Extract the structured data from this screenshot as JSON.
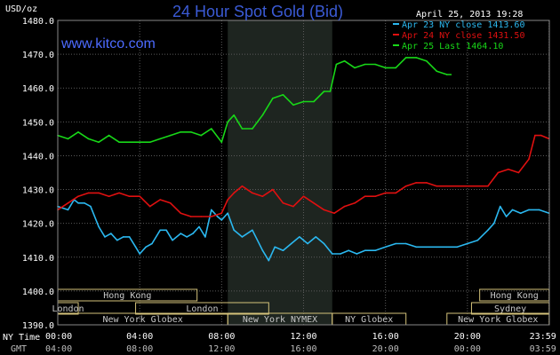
{
  "chart_data": {
    "type": "line",
    "title": "24 Hour Spot Gold (Bid)",
    "site": "www.kitco.com",
    "date_label": "April 25, 2013 19:28",
    "yunit": "USD/oz",
    "ylim": [
      1390,
      1480
    ],
    "yticks": [
      "1390.0",
      "1400.0",
      "1410.0",
      "1420.0",
      "1430.0",
      "1440.0",
      "1450.0",
      "1460.0",
      "1470.0",
      "1480.0"
    ],
    "xlim": [
      0,
      24
    ],
    "x_row_label_ny": "NY Time",
    "x_row_label_gmt": "GMT",
    "xticks_ny": [
      "00:00",
      "04:00",
      "08:00",
      "12:00",
      "16:00",
      "20:00",
      "23:59"
    ],
    "xticks_gmt": [
      "04:00",
      "08:00",
      "12:00",
      "16:00",
      "20:00",
      "00:00",
      "03:59"
    ],
    "grid": true,
    "legend_position": "top-right",
    "highlight_hours": [
      8.3,
      13.4
    ],
    "series": [
      {
        "name": "Apr 23 NY close 1413.60",
        "color": "#2bb8f0",
        "x": [
          0,
          0.5,
          0.8,
          1.0,
          1.3,
          1.6,
          2.0,
          2.3,
          2.6,
          2.9,
          3.2,
          3.5,
          3.8,
          4.0,
          4.3,
          4.6,
          5.0,
          5.3,
          5.6,
          6.0,
          6.3,
          6.6,
          6.9,
          7.2,
          7.5,
          7.8,
          8.0,
          8.3,
          8.6,
          9.0,
          9.5,
          10.0,
          10.3,
          10.6,
          11.0,
          11.4,
          11.8,
          12.2,
          12.6,
          13.0,
          13.4,
          13.8,
          14.2,
          14.6,
          15.0,
          15.5,
          16.0,
          16.5,
          17.0,
          17.5,
          18.0,
          18.5,
          19.0,
          19.5,
          20.0,
          20.5,
          21.0,
          21.3,
          21.6,
          21.9,
          22.2,
          22.6,
          23.0,
          23.5,
          23.99
        ],
        "values": [
          1425,
          1424,
          1427,
          1426,
          1426,
          1425,
          1419,
          1416,
          1417,
          1415,
          1416,
          1416,
          1413,
          1411,
          1413,
          1414,
          1418,
          1418,
          1415,
          1417,
          1416,
          1417,
          1419,
          1416,
          1424,
          1422,
          1421,
          1423,
          1418,
          1416,
          1418,
          1412,
          1409,
          1413,
          1412,
          1414,
          1416,
          1414,
          1416,
          1414,
          1411,
          1411,
          1412,
          1411,
          1412,
          1412,
          1413,
          1414,
          1414,
          1413,
          1413,
          1413,
          1413,
          1413,
          1414,
          1415,
          1418,
          1420,
          1425,
          1422,
          1424,
          1423,
          1424,
          1424,
          1423
        ]
      },
      {
        "name": "Apr 24 NY close 1431.50",
        "color": "#e01010",
        "x": [
          0,
          0.5,
          1.0,
          1.5,
          2.0,
          2.5,
          3.0,
          3.5,
          4.0,
          4.5,
          5.0,
          5.5,
          6.0,
          6.5,
          7.0,
          7.5,
          8.0,
          8.3,
          8.6,
          9.0,
          9.5,
          10.0,
          10.5,
          11.0,
          11.5,
          12.0,
          12.5,
          13.0,
          13.5,
          14.0,
          14.5,
          15.0,
          15.5,
          16.0,
          16.5,
          17.0,
          17.5,
          18.0,
          18.5,
          19.0,
          19.5,
          20.0,
          20.5,
          21.0,
          21.5,
          22.0,
          22.5,
          23.0,
          23.3,
          23.6,
          23.99
        ],
        "values": [
          1424,
          1426,
          1428,
          1429,
          1429,
          1428,
          1429,
          1428,
          1428,
          1425,
          1427,
          1426,
          1423,
          1422,
          1422,
          1422,
          1423,
          1427,
          1429,
          1431,
          1429,
          1428,
          1430,
          1426,
          1425,
          1428,
          1426,
          1424,
          1423,
          1425,
          1426,
          1428,
          1428,
          1429,
          1429,
          1431,
          1432,
          1432,
          1431,
          1431,
          1431,
          1431,
          1431,
          1431,
          1435,
          1436,
          1435,
          1439,
          1446,
          1446,
          1445
        ]
      },
      {
        "name": "Apr 25 Last 1464.10",
        "color": "#18d818",
        "x": [
          0,
          0.5,
          1.0,
          1.5,
          2.0,
          2.5,
          3.0,
          3.5,
          4.0,
          4.5,
          5.0,
          5.5,
          6.0,
          6.5,
          7.0,
          7.5,
          8.0,
          8.3,
          8.6,
          9.0,
          9.5,
          10.0,
          10.5,
          11.0,
          11.5,
          12.0,
          12.5,
          13.0,
          13.3,
          13.6,
          14.0,
          14.5,
          15.0,
          15.5,
          16.0,
          16.5,
          17.0,
          17.5,
          18.0,
          18.5,
          19.0,
          19.2
        ],
        "values": [
          1446,
          1445,
          1447,
          1445,
          1444,
          1446,
          1444,
          1444,
          1444,
          1444,
          1445,
          1446,
          1447,
          1447,
          1446,
          1448,
          1444,
          1450,
          1452,
          1448,
          1448,
          1452,
          1457,
          1458,
          1455,
          1456,
          1456,
          1459,
          1459,
          1467,
          1468,
          1466,
          1467,
          1467,
          1466,
          1466,
          1469,
          1469,
          1468,
          1465,
          1464,
          1464
        ]
      }
    ],
    "sessions": {
      "row1": [
        {
          "label": "Hong Kong",
          "start": 0,
          "end": 6.8
        },
        {
          "label": "Hong Kong",
          "start": 20.6,
          "end": 23.99
        }
      ],
      "row2": [
        {
          "label": "London",
          "start": 0,
          "end": 1.0
        },
        {
          "label": "London",
          "start": 3.8,
          "end": 10.3
        },
        {
          "label": "Sydney",
          "start": 20.2,
          "end": 23.99
        }
      ],
      "row3": [
        {
          "label": "New York Globex",
          "start": 0,
          "end": 8.3
        },
        {
          "label": "New York NYMEX",
          "start": 8.3,
          "end": 13.4
        },
        {
          "label": "NY Globex",
          "start": 13.4,
          "end": 17.0
        },
        {
          "label": "New York Globex",
          "start": 19.0,
          "end": 23.99
        }
      ]
    }
  }
}
